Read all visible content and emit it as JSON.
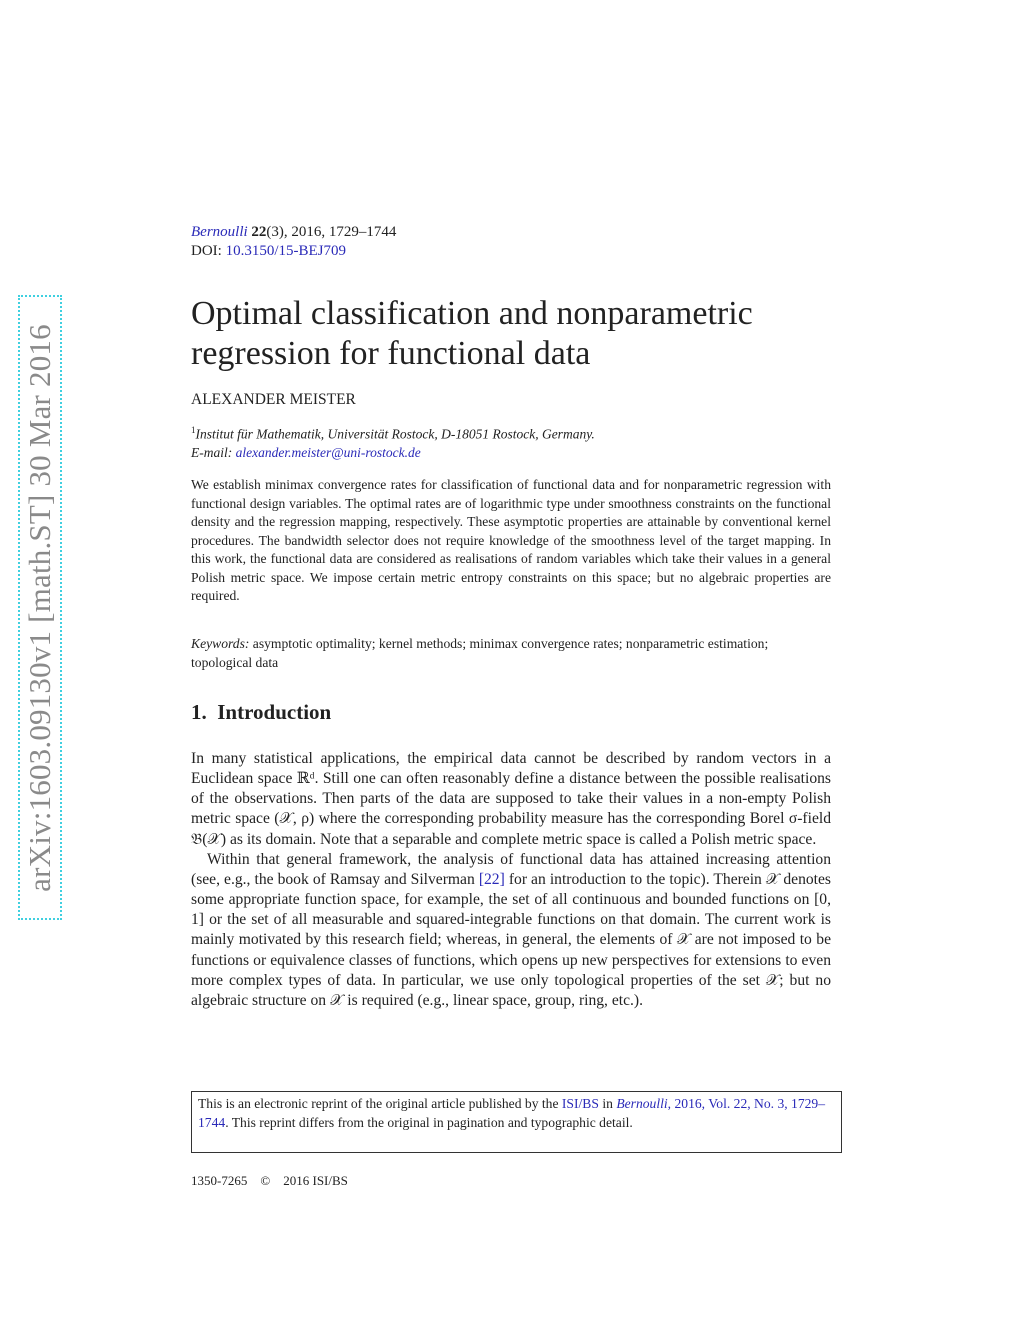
{
  "stamp": {
    "text": "arXiv:1603.09130v1  [math.ST]  30 Mar 2016",
    "border_color": "#3fd0e0"
  },
  "journal": {
    "name": "Bernoulli",
    "volume": "22",
    "issue_pages": "(3), 2016, 1729–1744",
    "doi_label": "DOI: ",
    "doi": "10.3150/15-BEJ709"
  },
  "title": "Optimal classification and nonparametric regression for functional data",
  "author": "ALEXANDER MEISTER",
  "affiliation": {
    "sup": "1",
    "text": "Institut für Mathematik, Universität Rostock, D-18051 Rostock, Germany.",
    "email_label": "E-mail: ",
    "email": "alexander.meister@uni-rostock.de"
  },
  "abstract": "We establish minimax convergence rates for classification of functional data and for nonparametric regression with functional design variables. The optimal rates are of logarithmic type under smoothness constraints on the functional density and the regression mapping, respectively. These asymptotic properties are attainable by conventional kernel procedures. The bandwidth selector does not require knowledge of the smoothness level of the target mapping. In this work, the functional data are considered as realisations of random variables which take their values in a general Polish metric space. We impose certain metric entropy constraints on this space; but no algebraic properties are required.",
  "keywords": {
    "label": "Keywords:",
    "text": " asymptotic optimality; kernel methods; minimax convergence rates; nonparametric estimation; topological data"
  },
  "section": {
    "number": "1.",
    "title": "Introduction"
  },
  "intro": {
    "p1": "In many statistical applications, the empirical data cannot be described by random vectors in a Euclidean space ℝᵈ. Still one can often reasonably define a distance between the possible realisations of the observations. Then parts of the data are supposed to take their values in a non-empty Polish metric space (𝒳, ρ) where the corresponding probability measure has the corresponding Borel σ-field 𝔅(𝒳) as its domain. Note that a separable and complete metric space is called a Polish metric space.",
    "p2a": "Within that general framework, the analysis of functional data has attained increasing attention (see, e.g., the book of Ramsay and Silverman ",
    "p2ref": "[22]",
    "p2b": " for an introduction to the topic). Therein 𝒳 denotes some appropriate function space, for example, the set of all continuous and bounded functions on [0, 1] or the set of all measurable and squared-integrable functions on that domain. The current work is mainly motivated by this research field; whereas, in general, the elements of 𝒳 are not imposed to be functions or equivalence classes of functions, which opens up new perspectives for extensions to even more complex types of data. In particular, we use only topological properties of the set 𝒳; but no algebraic structure on 𝒳 is required (e.g., linear space, group, ring, etc.)."
  },
  "reprint": {
    "t1": "This is an electronic reprint of the original article published by the ",
    "publisher": "ISI/BS",
    "t2": " in ",
    "journal": "Bernoulli",
    "citation": ", 2016, Vol. 22, No. 3, 1729–1744",
    "t3": ". This reprint differs from the original in pagination and typographic detail."
  },
  "footer": {
    "issn": "1350-7265",
    "copyright": "©",
    "holder": "2016 ISI/BS"
  },
  "colors": {
    "link": "#2a2ab8",
    "text": "#222222"
  }
}
